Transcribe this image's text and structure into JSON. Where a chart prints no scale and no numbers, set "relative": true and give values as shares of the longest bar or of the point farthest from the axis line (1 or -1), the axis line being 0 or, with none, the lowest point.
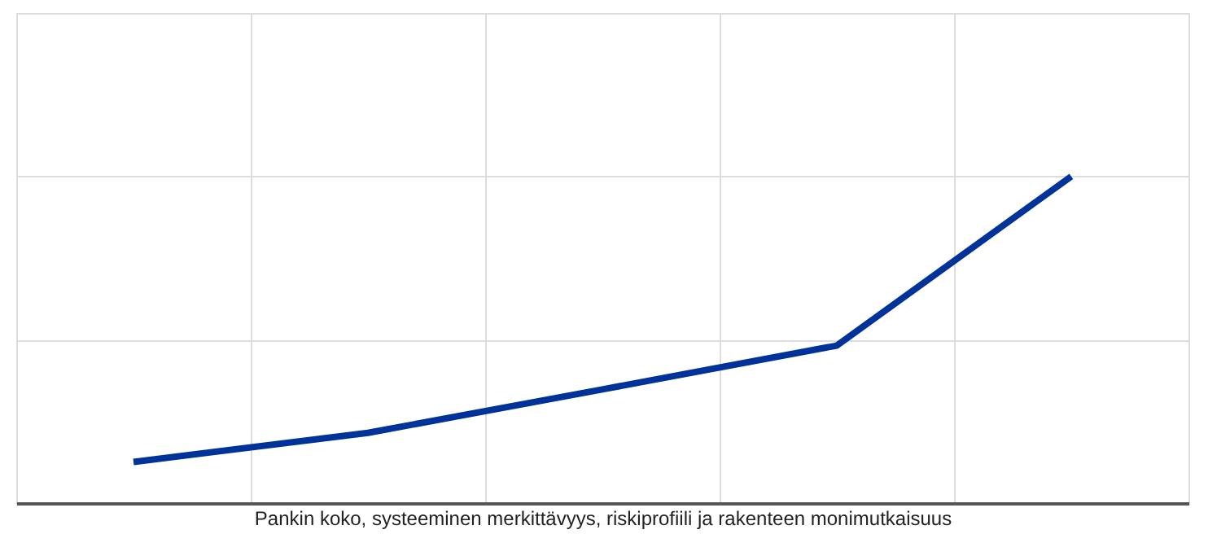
{
  "chart_data": {
    "type": "line",
    "relative": true,
    "xlabel": "Pankin koko, systeeminen merkittävyys, riskiprofiili ja rakenteen monimutkaisuus",
    "categories": [
      null,
      null,
      null,
      null,
      null
    ],
    "series": [
      {
        "color": "#003399",
        "values": [
          0.126,
          0.215,
          0.348,
          0.482,
          1.0
        ]
      }
    ],
    "grid": true,
    "marker": "none",
    "line_style": "solid",
    "tick_labels": false
  }
}
